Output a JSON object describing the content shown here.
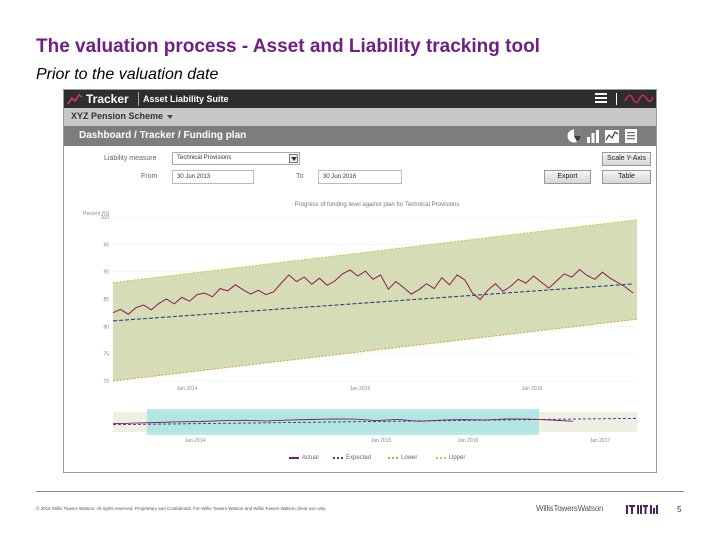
{
  "slide": {
    "title": "The valuation process - Asset and Liability tracking tool",
    "subtitle": "Prior to the valuation date"
  },
  "app": {
    "brand": "Tracker",
    "suite": "Asset Liability Suite",
    "scheme": "XYZ Pension Scheme",
    "breadcrumb": "Dashboard / Tracker / Funding plan",
    "view_icons": [
      "pie-chart-icon",
      "bar-chart-icon",
      "line-chart-icon",
      "table-list-icon"
    ],
    "accent_color": "#c0285a"
  },
  "form": {
    "liability_label": "Liability measure",
    "liability_value": "Technical Provisions",
    "from_label": "From",
    "from_value": "30 Jun 2013",
    "to_label": "To",
    "to_value": "30 Jun 2016",
    "scale_button": "Scale Y-Axis",
    "export_button": "Export",
    "table_button": "Table"
  },
  "chart_data": [
    {
      "type": "line",
      "title": "Progress of funding level against plan for Technical Provisions",
      "ylabel": "Percent (%)",
      "ylim": [
        70,
        100
      ],
      "yticks": [
        "100",
        "95",
        "90",
        "85",
        "80",
        "75",
        "70"
      ],
      "xticks": [
        "Jan 2014",
        "Jan 2015",
        "Jan 2016"
      ],
      "x_range": [
        "Jun 2013",
        "Jun 2016"
      ],
      "series": [
        {
          "name": "Actual",
          "color": "#8b1a5a",
          "start": 82.5,
          "points": [
            82.5,
            83.1,
            82.2,
            83.4,
            83.9,
            83.0,
            84.2,
            85.0,
            84.1,
            85.3,
            84.6,
            85.8,
            86.1,
            85.4,
            86.9,
            86.5,
            87.6,
            86.7,
            85.9,
            86.6,
            85.8,
            86.3,
            87.9,
            89.4,
            88.2,
            89.0,
            87.7,
            88.8,
            87.5,
            88.3,
            89.6,
            90.3,
            89.2,
            90.1,
            88.6,
            89.4,
            86.8,
            88.2,
            87.1,
            85.9,
            86.7,
            87.8,
            86.9,
            88.9,
            87.6,
            89.4,
            88.5,
            86.1,
            84.9,
            86.6,
            87.8,
            86.4,
            87.3,
            88.6,
            87.9,
            89.2,
            88.1,
            87.0,
            88.3,
            89.6,
            89.0,
            90.4,
            89.3,
            88.6,
            89.9,
            88.8,
            88.0,
            87.2,
            86.1
          ]
        },
        {
          "name": "Expected",
          "color": "#2a3f8f",
          "start": 81.0,
          "end": 87.8
        },
        {
          "name": "Lower",
          "color": "#d9a13b",
          "start": 70.0,
          "end": 81.3
        },
        {
          "name": "Upper",
          "color": "#bfcf3a",
          "start": 88.0,
          "end": 99.5
        }
      ],
      "band_color": "#cfd6a8"
    },
    {
      "type": "line",
      "title": "",
      "xticks": [
        "Jan 2014",
        "Jan 2015",
        "Jan 2016",
        "Jan 2017"
      ],
      "ylim": [
        70,
        100
      ],
      "selection_fill": "#9ee3e1",
      "series": [
        {
          "name": "Actual",
          "color": "#8b1a5a",
          "start": 82.5,
          "points": [
            82.5,
            83.4,
            84.2,
            85.3,
            85.8,
            86.9,
            87.6,
            86.6,
            87.9,
            88.8,
            89.6,
            89.4,
            87.1,
            88.9,
            86.1,
            87.8,
            88.6,
            88.1,
            89.6,
            89.3,
            88.0,
            86.1
          ]
        },
        {
          "name": "Expected",
          "color": "#2a3f8f",
          "start": 81.0,
          "end": 90.5
        }
      ]
    }
  ],
  "legend": [
    {
      "label": "Actual",
      "color": "#8b1a5a",
      "dashed": false
    },
    {
      "label": "Expected",
      "color": "#2a3f8f",
      "dashed": true
    },
    {
      "label": "Lower",
      "color": "#d9a13b",
      "dashed": true
    },
    {
      "label": "Upper",
      "color": "#bfcf3a",
      "dashed": true
    }
  ],
  "footer": {
    "copyright": "© 2016 Willis Towers Watson. All rights reserved. Proprietary and Confidential. For Willis Towers Watson and Willis Towers Watson client use only.",
    "brand": "WillisTowersWatson",
    "page": "5"
  }
}
